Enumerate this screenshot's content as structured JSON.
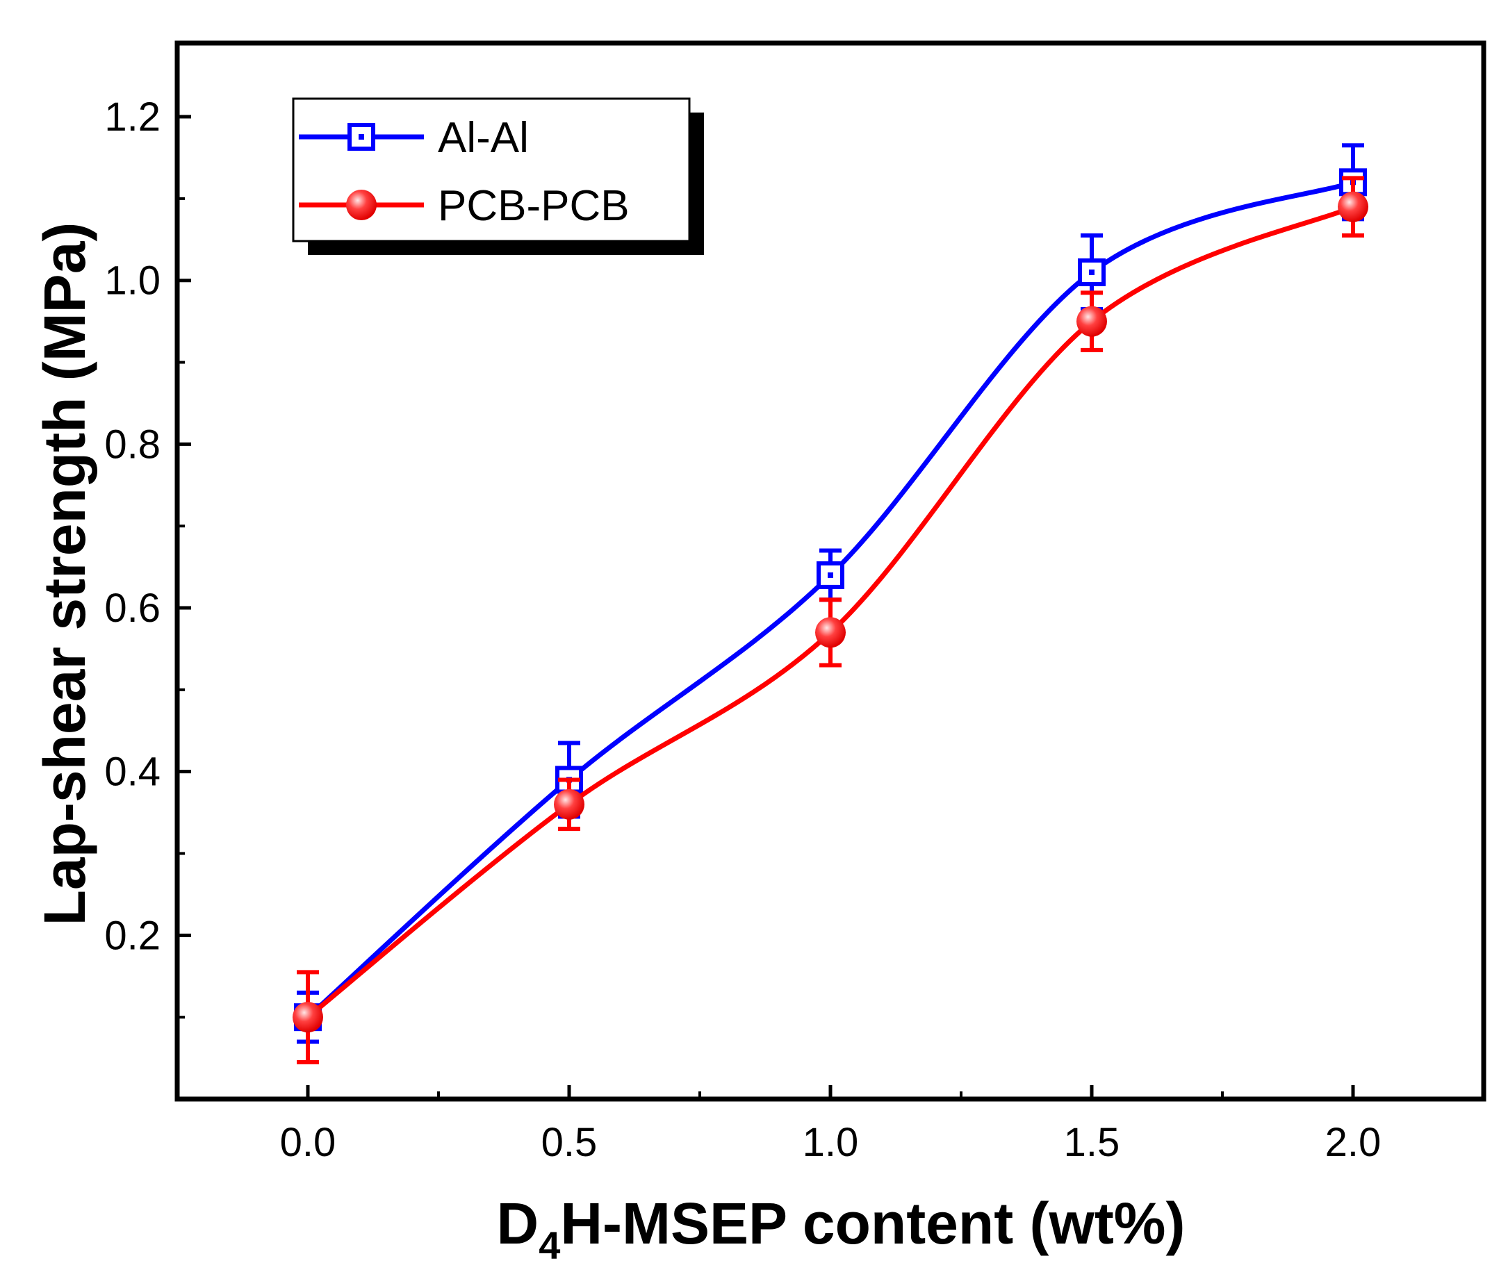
{
  "chart_data": {
    "type": "line",
    "title": "",
    "xlabel": "D4H-MSEP content (wt%)",
    "xlabel_parts": {
      "main": "D",
      "subscript": "4",
      "rest": "H-MSEP content (wt%)"
    },
    "ylabel": "Lap-shear strength (MPa)",
    "x": [
      0.0,
      0.5,
      1.0,
      1.5,
      2.0
    ],
    "xlim": [
      -0.25,
      2.25
    ],
    "ylim": [
      0.0,
      1.29
    ],
    "x_ticks": [
      0.0,
      0.5,
      1.0,
      1.5,
      2.0
    ],
    "x_tick_labels": [
      "0.0",
      "0.5",
      "1.0",
      "1.5",
      "2.0"
    ],
    "x_minor_ticks": [
      0.25,
      0.75,
      1.25,
      1.75
    ],
    "y_ticks": [
      0.2,
      0.4,
      0.6,
      0.8,
      1.0,
      1.2
    ],
    "y_tick_labels": [
      "0.2",
      "0.4",
      "0.6",
      "0.8",
      "1.0",
      "1.2"
    ],
    "y_minor_ticks": [
      0.1,
      0.3,
      0.5,
      0.7,
      0.9,
      1.1
    ],
    "grid": false,
    "legend_position": "top-left",
    "series": [
      {
        "name": "Al-Al",
        "color": "#0000ff",
        "marker": "open-square",
        "values": [
          0.1,
          0.39,
          0.64,
          1.01,
          1.12
        ],
        "errors": [
          0.03,
          0.045,
          0.03,
          0.045,
          0.045
        ]
      },
      {
        "name": "PCB-PCB",
        "color": "#ff0000",
        "marker": "filled-circle",
        "values": [
          0.1,
          0.36,
          0.57,
          0.95,
          1.09
        ],
        "errors": [
          0.055,
          0.03,
          0.04,
          0.035,
          0.035
        ]
      }
    ]
  }
}
